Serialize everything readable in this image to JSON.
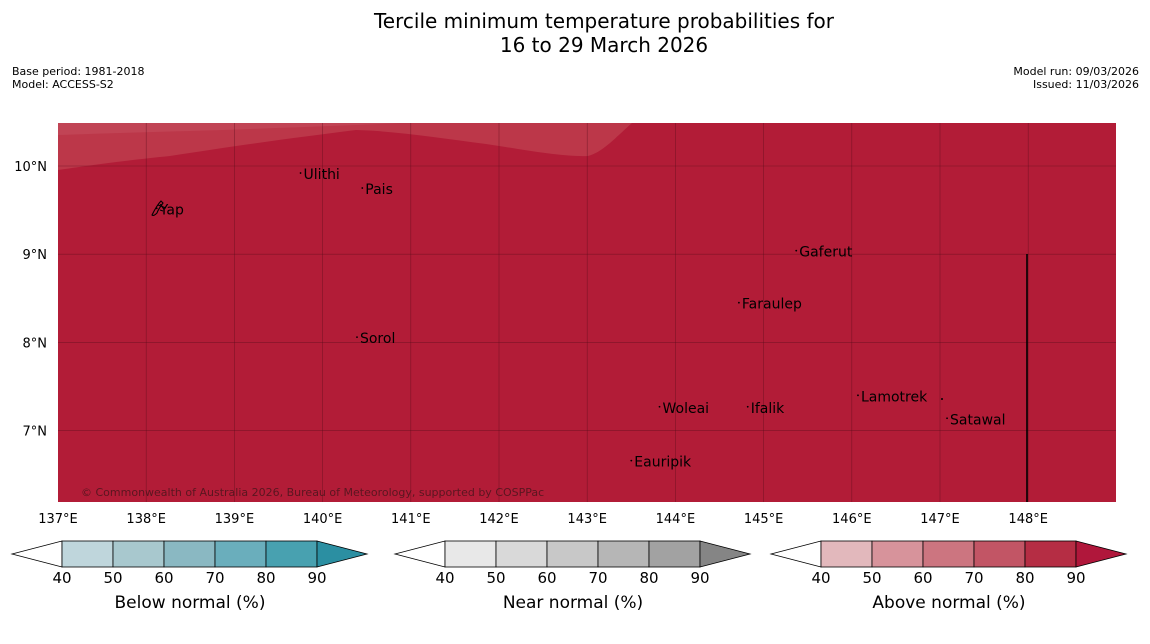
{
  "title": {
    "line1": "Tercile minimum temperature probabilities for",
    "line2": "16 to 29 March 2026"
  },
  "meta": {
    "base_period": "Base period: 1981-2018",
    "model": "Model: ACCESS-S2",
    "model_run": "Model run: 09/03/2026",
    "issued": "Issued: 11/03/2026"
  },
  "map": {
    "longitude_range": [
      137,
      149
    ],
    "latitude_range": [
      6.2,
      10.5
    ],
    "lon_ticks": [
      137,
      138,
      139,
      140,
      141,
      142,
      143,
      144,
      145,
      146,
      147,
      148
    ],
    "lon_tick_labels": [
      "137°E",
      "138°E",
      "139°E",
      "140°E",
      "141°E",
      "142°E",
      "143°E",
      "144°E",
      "145°E",
      "146°E",
      "147°E",
      "148°E"
    ],
    "lat_ticks": [
      10,
      9,
      8,
      7
    ],
    "lat_tick_labels": [
      "10°N",
      "9°N",
      "8°N",
      "7°N"
    ],
    "copyright": "© Commonwealth of Australia 2026, Bureau of Meteorology, supported by COSPPac",
    "colors": {
      "main_fill": "#b21c37",
      "upper_band": "#bc3749",
      "upper_band_light": "#c54d5d",
      "grid": "#5a0d1b"
    },
    "places": [
      {
        "name": "Ulithi",
        "lon": 139.75,
        "lat": 9.92
      },
      {
        "name": "Pais",
        "lon": 140.45,
        "lat": 9.75
      },
      {
        "name": "Yap",
        "lon": 138.12,
        "lat": 9.52
      },
      {
        "name": "Gaferut",
        "lon": 145.37,
        "lat": 9.04
      },
      {
        "name": "Faraulep",
        "lon": 144.72,
        "lat": 8.45
      },
      {
        "name": "Sorol",
        "lon": 140.39,
        "lat": 8.06
      },
      {
        "name": "Lamotrek",
        "lon": 146.07,
        "lat": 7.4
      },
      {
        "name": "Woleai",
        "lon": 143.82,
        "lat": 7.27
      },
      {
        "name": "Ifalik",
        "lon": 144.82,
        "lat": 7.27
      },
      {
        "name": "Satawal",
        "lon": 147.08,
        "lat": 7.14
      },
      {
        "name": "Eauripik",
        "lon": 143.5,
        "lat": 6.66
      }
    ]
  },
  "legends": [
    {
      "label": "Below normal (%)",
      "ticks": [
        "40",
        "50",
        "60",
        "70",
        "80",
        "90"
      ],
      "colors": [
        "#ffffff",
        "#bfd6dc",
        "#a8c8ce",
        "#8ab8c2",
        "#6aaebc",
        "#48a1b0",
        "#2b8fa2"
      ]
    },
    {
      "label": "Near normal (%)",
      "ticks": [
        "40",
        "50",
        "60",
        "70",
        "80",
        "90"
      ],
      "colors": [
        "#ffffff",
        "#e8e8e8",
        "#d9d9d9",
        "#c8c8c8",
        "#b6b6b6",
        "#a2a2a2",
        "#858585"
      ]
    },
    {
      "label": "Above normal (%)",
      "ticks": [
        "40",
        "50",
        "60",
        "70",
        "80",
        "90"
      ],
      "colors": [
        "#ffffff",
        "#e2b8bc",
        "#d7939b",
        "#cc7580",
        "#c25565",
        "#b52d44",
        "#b0173b"
      ]
    }
  ]
}
